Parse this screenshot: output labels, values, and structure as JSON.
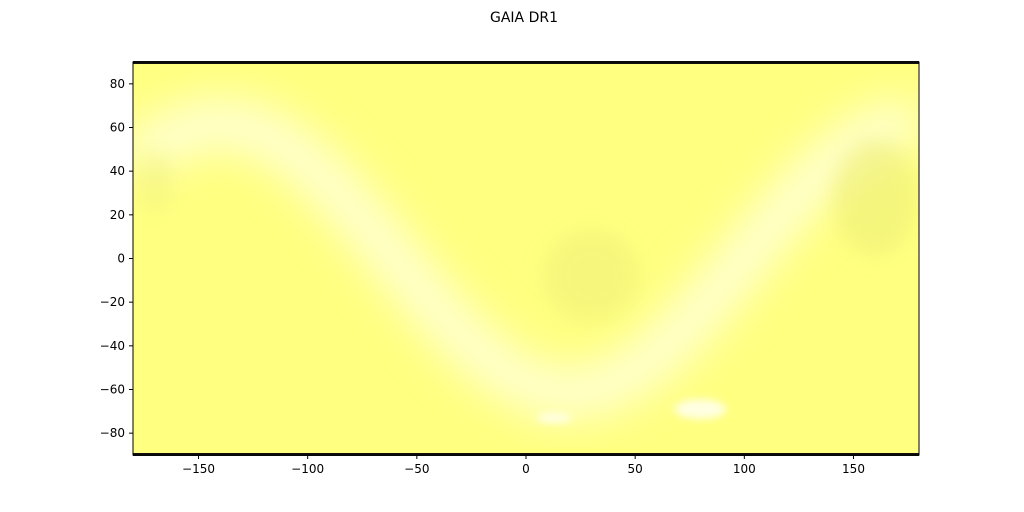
{
  "figure": {
    "title": "GAIA DR1"
  },
  "chart_data": {
    "type": "heatmap",
    "title": "GAIA DR1",
    "xlabel": "",
    "ylabel": "",
    "xlim": [
      -180,
      180
    ],
    "ylim": [
      -90,
      90
    ],
    "x_ticks": [
      -150,
      -100,
      -50,
      0,
      50,
      100,
      150
    ],
    "y_ticks": [
      -80,
      -60,
      -40,
      -20,
      0,
      20,
      40,
      60,
      80
    ],
    "x_tick_labels": [
      "−150",
      "−100",
      "−50",
      "0",
      "50",
      "100",
      "150"
    ],
    "y_tick_labels": [
      "−80",
      "−60",
      "−40",
      "−20",
      "0",
      "20",
      "40",
      "60",
      "80"
    ],
    "grid": false,
    "colormap": {
      "low": "#ffff80",
      "high": "#ffffe6"
    },
    "features": {
      "galactic_plane_band": {
        "color": "#ffffd8"
      },
      "large_magellanic_cloud": {
        "x": 80,
        "y": -69
      },
      "small_magellanic_cloud": {
        "x": 13,
        "y": -73
      },
      "dense_patch_center": {
        "x": 30,
        "y": -8
      },
      "dense_patch_right": {
        "x": 160,
        "y": 28
      },
      "dense_patch_left": {
        "x": -170,
        "y": 35
      }
    }
  }
}
